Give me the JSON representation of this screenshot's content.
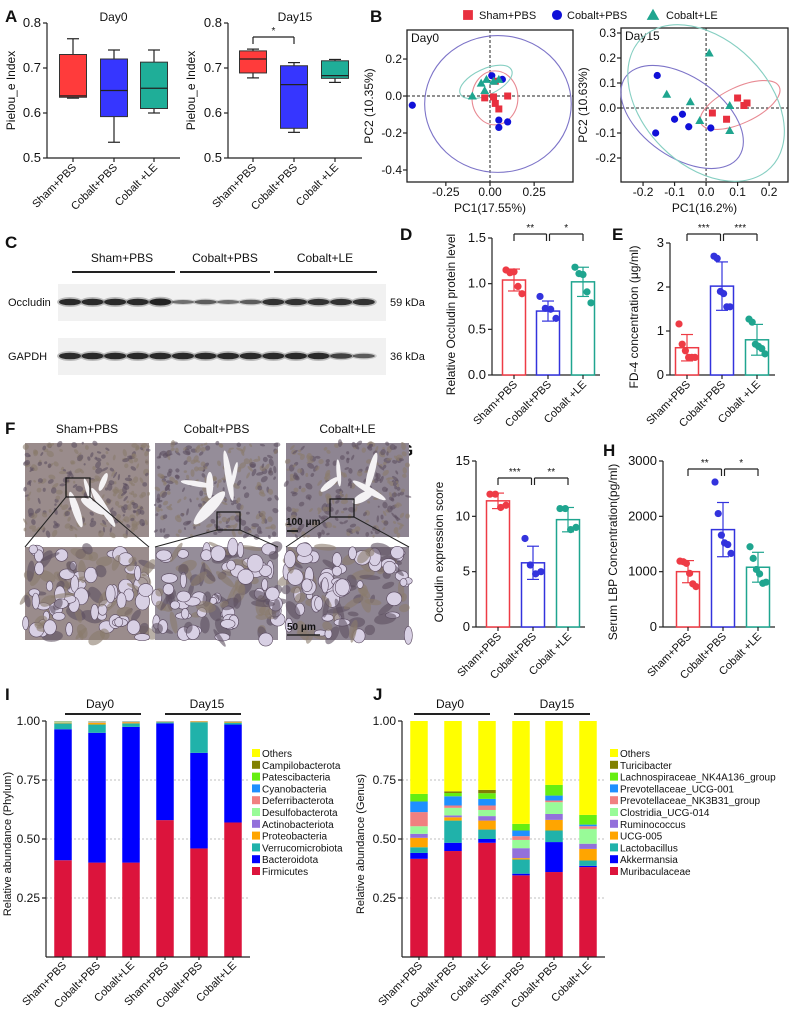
{
  "panel_labels": [
    "A",
    "B",
    "C",
    "D",
    "E",
    "F",
    "G",
    "H",
    "I",
    "J"
  ],
  "group_colors": {
    "Sham+PBS": "#ee3b45",
    "Cobalt+PBS": "#3333dd",
    "Cobalt+LE": "#1fa58f"
  },
  "box_fill_colors": [
    "#ff3b3b",
    "#3636ff",
    "#1fae98"
  ],
  "legend_B": [
    {
      "label": "Sham+PBS",
      "marker": "square",
      "color": "#e8303f"
    },
    {
      "label": "Cobalt+PBS",
      "marker": "circle",
      "color": "#1010d8"
    },
    {
      "label": "Cobalt+LE",
      "marker": "triangle",
      "color": "#1fa58f"
    }
  ],
  "western_blot": {
    "groups": [
      "Sham+PBS",
      "Cobalt+PBS",
      "Cobalt+LE"
    ],
    "proteins": [
      {
        "name": "Occludin",
        "size": "59 kDa"
      },
      {
        "name": "GAPDH",
        "size": "36 kDa"
      }
    ]
  },
  "ihc": {
    "groups": [
      "Sham+PBS",
      "Cobalt+PBS",
      "Cobalt+LE"
    ],
    "scale_bar_low": "100 μm",
    "scale_bar_high": "50 μm"
  },
  "chart_data": [
    {
      "panel": "A",
      "type": "box",
      "title": "Day0",
      "ylabel": "Pielou_e Index",
      "ylim": [
        0.5,
        0.8
      ],
      "yticks": [
        0.5,
        0.6,
        0.7,
        0.8
      ],
      "ytick_labels": [
        "0.5",
        "0.6",
        "0.7",
        "0.8"
      ],
      "categories": [
        "Sham+PBS",
        "Cobalt+PBS",
        "Cobalt +LE"
      ],
      "boxes": [
        {
          "min": 0.633,
          "q1": 0.635,
          "median": 0.638,
          "q3": 0.73,
          "max": 0.765
        },
        {
          "min": 0.535,
          "q1": 0.592,
          "median": 0.65,
          "q3": 0.72,
          "max": 0.74
        },
        {
          "min": 0.6,
          "q1": 0.61,
          "median": 0.655,
          "q3": 0.713,
          "max": 0.74
        }
      ],
      "significance": []
    },
    {
      "panel": "A",
      "type": "box",
      "title": "Day15",
      "ylabel": "Pielou_e Index",
      "ylim": [
        0.5,
        0.8
      ],
      "yticks": [
        0.5,
        0.6,
        0.7,
        0.8
      ],
      "ytick_labels": [
        "0.5",
        "0.6",
        "0.7",
        "0.8"
      ],
      "categories": [
        "Sham+PBS",
        "Cobalt+PBS",
        "Cobalt +LE"
      ],
      "boxes": [
        {
          "min": 0.678,
          "q1": 0.689,
          "median": 0.72,
          "q3": 0.738,
          "max": 0.742
        },
        {
          "min": 0.557,
          "q1": 0.566,
          "median": 0.663,
          "q3": 0.705,
          "max": 0.712
        },
        {
          "min": 0.668,
          "q1": 0.677,
          "median": 0.683,
          "q3": 0.716,
          "max": 0.719
        }
      ],
      "significance": [
        {
          "groups": [
            0,
            1
          ],
          "label": "*"
        }
      ]
    },
    {
      "panel": "B",
      "type": "scatter",
      "title": "Day0",
      "xlabel": "PC1(17.55%)",
      "ylabel": "PC2 (10.35%)",
      "xlim": [
        -0.47,
        0.47
      ],
      "ylim": [
        -0.465,
        0.357
      ],
      "xticks": [
        -0.25,
        0,
        0.25
      ],
      "xtick_labels": [
        "-0.25",
        "0.00",
        "0.25"
      ],
      "yticks": [
        0.2,
        0,
        -0.2,
        -0.4
      ],
      "ytick_labels": [
        "0.2",
        "0.0",
        "-0.2",
        "-0.4"
      ],
      "series": [
        {
          "name": "Sham+PBS",
          "points": [
            [
              -0.03,
              -0.01
            ],
            [
              0.02,
              -0.005
            ],
            [
              0.03,
              -0.04
            ],
            [
              0.05,
              -0.07
            ],
            [
              0.1,
              0.0
            ],
            [
              0.03,
              0.08
            ]
          ],
          "ellipse": {
            "cx": 0.028,
            "cy": -0.01,
            "rx": 0.13,
            "ry": 0.146,
            "angle": 0
          }
        },
        {
          "name": "Cobalt+PBS",
          "points": [
            [
              -0.44,
              -0.05
            ],
            [
              0.01,
              0.11
            ],
            [
              0.07,
              0.09
            ],
            [
              0.05,
              -0.13
            ],
            [
              0.1,
              -0.14
            ],
            [
              0.05,
              -0.17
            ]
          ],
          "ellipse": {
            "cx": 0.045,
            "cy": -0.043,
            "rx": 0.415,
            "ry": 0.37,
            "angle": 0
          }
        },
        {
          "name": "Cobalt+LE",
          "points": [
            [
              -0.1,
              0.0
            ],
            [
              -0.05,
              0.07
            ],
            [
              -0.03,
              0.03
            ],
            [
              -0.02,
              0.09
            ],
            [
              0.02,
              0.08
            ],
            [
              0.05,
              0.09
            ]
          ],
          "ellipse": {
            "cx": -0.023,
            "cy": 0.076,
            "rx": 0.16,
            "ry": 0.07,
            "angle": -25
          }
        }
      ]
    },
    {
      "panel": "B",
      "type": "scatter",
      "title": "Day15",
      "xlabel": "PC1(16.2%)",
      "ylabel": "PC2 (10.63%)",
      "xlim": [
        -0.27,
        0.26
      ],
      "ylim": [
        -0.296,
        0.32
      ],
      "xticks": [
        -0.2,
        -0.1,
        0,
        0.1,
        0.2
      ],
      "xtick_labels": [
        "-0.2",
        "-0.1",
        "0.0",
        "0.1",
        "0.2"
      ],
      "yticks": [
        0.3,
        0.2,
        0.1,
        0,
        -0.1,
        -0.2
      ],
      "ytick_labels": [
        "0.3",
        "0.2",
        "0.1",
        "0.0",
        "-0.1",
        "-0.2"
      ],
      "series": [
        {
          "name": "Sham+PBS",
          "points": [
            [
              0.02,
              -0.02
            ],
            [
              0.065,
              -0.045
            ],
            [
              0.1,
              0.04
            ],
            [
              0.12,
              0.01
            ],
            [
              0.13,
              0.02
            ]
          ],
          "ellipse": {
            "cx": 0.108,
            "cy": 0.012,
            "rx": 0.137,
            "ry": 0.072,
            "angle": -25
          }
        },
        {
          "name": "Cobalt+PBS",
          "points": [
            [
              -0.155,
              0.13
            ],
            [
              -0.1,
              -0.045
            ],
            [
              -0.075,
              -0.025
            ],
            [
              -0.055,
              -0.075
            ],
            [
              0.015,
              -0.08
            ],
            [
              -0.16,
              -0.1
            ]
          ],
          "ellipse": {
            "cx": -0.076,
            "cy": -0.036,
            "rx": 0.22,
            "ry": 0.16,
            "angle": 35
          }
        },
        {
          "name": "Cobalt+LE",
          "points": [
            [
              0.01,
              0.22
            ],
            [
              -0.125,
              0.055
            ],
            [
              -0.05,
              0.025
            ],
            [
              -0.02,
              -0.05
            ],
            [
              0.075,
              0.01
            ],
            [
              0.075,
              -0.09
            ]
          ],
          "ellipse": {
            "cx": 0.0,
            "cy": 0.02,
            "rx": 0.29,
            "ry": 0.25,
            "angle": 45
          }
        }
      ]
    },
    {
      "panel": "D",
      "type": "bar",
      "ylabel": "Relative Occludin protein level",
      "ylim": [
        0,
        1.5
      ],
      "yticks": [
        0,
        0.5,
        1.0,
        1.5
      ],
      "ytick_labels": [
        "0.0",
        "0.5",
        "1.0",
        "1.5"
      ],
      "categories": [
        "Sham+PBS",
        "Cobalt+PBS",
        "Cobalt +LE"
      ],
      "means": [
        1.04,
        0.7,
        1.02
      ],
      "sd": [
        0.12,
        0.11,
        0.16
      ],
      "points": [
        [
          1.15,
          1.12,
          1.13,
          0.97,
          0.89
        ],
        [
          0.86,
          0.73,
          0.72,
          0.62
        ],
        [
          1.18,
          1.11,
          1.1,
          0.91,
          0.79
        ]
      ],
      "significance": [
        {
          "groups": [
            0,
            1
          ],
          "label": "**"
        },
        {
          "groups": [
            1,
            2
          ],
          "label": "*"
        }
      ]
    },
    {
      "panel": "E",
      "type": "bar",
      "ylabel": "FD-4 concentration (μg/ml)",
      "ylim": [
        0,
        3
      ],
      "yticks": [
        0,
        1,
        2,
        3
      ],
      "ytick_labels": [
        "0",
        "1",
        "2",
        "3"
      ],
      "categories": [
        "Sham+PBS",
        "Cobalt+PBS",
        "Cobalt +LE"
      ],
      "means": [
        0.62,
        2.02,
        0.8
      ],
      "sd": [
        0.3,
        0.55,
        0.35
      ],
      "points": [
        [
          1.16,
          0.7,
          0.55,
          0.4,
          0.4,
          0.4
        ],
        [
          2.7,
          2.65,
          1.9,
          1.85,
          1.55,
          1.55
        ],
        [
          1.27,
          1.2,
          0.7,
          0.65,
          0.6,
          0.48
        ]
      ],
      "significance": [
        {
          "groups": [
            0,
            1
          ],
          "label": "***"
        },
        {
          "groups": [
            1,
            2
          ],
          "label": "***"
        }
      ]
    },
    {
      "panel": "G",
      "type": "bar",
      "ylabel": "Occludin expression score",
      "ylim": [
        0,
        15
      ],
      "yticks": [
        0,
        5,
        10,
        15
      ],
      "ytick_labels": [
        "0",
        "5",
        "10",
        "15"
      ],
      "categories": [
        "Sham+PBS",
        "Cobalt+PBS",
        "Cobalt +LE"
      ],
      "means": [
        11.4,
        5.8,
        9.7
      ],
      "sd": [
        0.7,
        1.5,
        1.1
      ],
      "points": [
        [
          12.0,
          12.0,
          10.8,
          11.0
        ],
        [
          8.0,
          5.6,
          4.8,
          5.0
        ],
        [
          10.7,
          10.7,
          8.8,
          9.0
        ]
      ],
      "significance": [
        {
          "groups": [
            0,
            1
          ],
          "label": "***"
        },
        {
          "groups": [
            1,
            2
          ],
          "label": "**"
        }
      ]
    },
    {
      "panel": "H",
      "type": "bar",
      "ylabel": "Serum LBP Concentration(pg/ml)",
      "ylim": [
        0,
        3000
      ],
      "yticks": [
        0,
        1000,
        2000,
        3000
      ],
      "ytick_labels": [
        "0",
        "1000",
        "2000",
        "3000"
      ],
      "categories": [
        "Sham+PBS",
        "Cobalt+PBS",
        "Cobalt +LE"
      ],
      "means": [
        1000,
        1760,
        1080
      ],
      "sd": [
        200,
        490,
        270
      ],
      "points": [
        [
          1190,
          1180,
          1150,
          970,
          780,
          730
        ],
        [
          2620,
          2050,
          1660,
          1520,
          1490,
          1330
        ],
        [
          1450,
          1240,
          1040,
          960,
          790,
          810
        ]
      ],
      "significance": [
        {
          "groups": [
            0,
            1
          ],
          "label": "**"
        },
        {
          "groups": [
            1,
            2
          ],
          "label": "*"
        }
      ]
    },
    {
      "panel": "I",
      "type": "bar",
      "stacked": true,
      "ylabel": "Relative abundance (Phylum)",
      "ylim": [
        0,
        1
      ],
      "yticks": [
        0.25,
        0.5,
        0.75,
        1.0
      ],
      "ytick_labels": [
        "0.25",
        "0.50",
        "0.75",
        "1.00"
      ],
      "grid": true,
      "group_headers": [
        "Day0",
        "Day15"
      ],
      "categories": [
        "Sham+PBS",
        "Cobalt+PBS",
        "Cobalt+LE",
        "Sham+PBS",
        "Cobalt+PBS",
        "Cobalt+LE"
      ],
      "legend_position": "right",
      "series": [
        {
          "name": "Others",
          "color": "#ffff00",
          "values": [
            0.0005,
            0.0002,
            0.0001,
            0,
            0,
            0
          ]
        },
        {
          "name": "Campilobacterota",
          "color": "#808000",
          "values": [
            0.0005,
            0.0003,
            0.0001,
            0.0001,
            0,
            0.0001
          ]
        },
        {
          "name": "Patescibacteria",
          "color": "#66ee11",
          "values": [
            0.001,
            0.0005,
            0.0003,
            0.0001,
            0.0001,
            0.0001
          ]
        },
        {
          "name": "Cyanobacteria",
          "color": "#1e90ff",
          "values": [
            0.001,
            0.001,
            0.0005,
            0.0003,
            0.0001,
            0.0003
          ]
        },
        {
          "name": "Deferribacterota",
          "color": "#f08080",
          "values": [
            0.001,
            0.001,
            0.001,
            0.0005,
            0.0003,
            0.0005
          ]
        },
        {
          "name": "Desulfobacterota",
          "color": "#98fb98",
          "values": [
            0.002,
            0.002,
            0.001,
            0.001,
            0.0005,
            0.001
          ]
        },
        {
          "name": "Actinobacteriota",
          "color": "#9370db",
          "values": [
            0.001,
            0.002,
            0.002,
            0.001,
            0.001,
            0.001
          ]
        },
        {
          "name": "Proteobacteria",
          "color": "#ffa500",
          "values": [
            0.003,
            0.008,
            0.005,
            0.002,
            0.003,
            0.004
          ]
        },
        {
          "name": "Verrucomicrobiota",
          "color": "#20b2aa",
          "values": [
            0.025,
            0.035,
            0.015,
            0.005,
            0.13,
            0.008
          ]
        },
        {
          "name": "Bacteroidota",
          "color": "#0000ff",
          "values": [
            0.555,
            0.55,
            0.575,
            0.41,
            0.405,
            0.415
          ]
        },
        {
          "name": "Firmicutes",
          "color": "#dc143c",
          "values": [
            0.41,
            0.4,
            0.4,
            0.58,
            0.46,
            0.57
          ]
        }
      ]
    },
    {
      "panel": "J",
      "type": "bar",
      "stacked": true,
      "ylabel": "Relative abundance (Genus)",
      "ylim": [
        0,
        1
      ],
      "yticks": [
        0.25,
        0.5,
        0.75,
        1.0
      ],
      "ytick_labels": [
        "0.25",
        "0.50",
        "0.75",
        "1.00"
      ],
      "grid": true,
      "group_headers": [
        "Day0",
        "Day15"
      ],
      "categories": [
        "Sham+PBS",
        "Cobalt+PBS",
        "Cobalt+LE",
        "Sham+PBS",
        "Cobalt+PBS",
        "Cobalt+LE"
      ],
      "legend_position": "right",
      "series": [
        {
          "name": "Others",
          "color": "#ffff00",
          "values": [
            0.309,
            0.298,
            0.292,
            0.436,
            0.271,
            0.398
          ]
        },
        {
          "name": "Turicibacter",
          "color": "#808000",
          "values": [
            0,
            0.007,
            0.014,
            0,
            0,
            0
          ]
        },
        {
          "name": "Lachnospiraceae_NK4A136_group",
          "color": "#66ee11",
          "values": [
            0.032,
            0.014,
            0.024,
            0.028,
            0.045,
            0.041
          ]
        },
        {
          "name": "Prevotellaceae_UCG-001",
          "color": "#1e90ff",
          "values": [
            0.045,
            0.039,
            0.028,
            0.024,
            0.021,
            0.007
          ]
        },
        {
          "name": "Prevotellaceae_NK3B31_group",
          "color": "#f08080",
          "values": [
            0.06,
            0.01,
            0.019,
            0.016,
            0.007,
            0.011
          ]
        },
        {
          "name": "Clostridia_UCG-014",
          "color": "#98fb98",
          "values": [
            0.032,
            0.032,
            0.026,
            0.035,
            0.05,
            0.063
          ]
        },
        {
          "name": "Ruminococcus",
          "color": "#9370db",
          "values": [
            0.017,
            0.008,
            0.019,
            0.042,
            0.025,
            0.022
          ]
        },
        {
          "name": "UCG-005",
          "color": "#ffa500",
          "values": [
            0.04,
            0.014,
            0.038,
            0.006,
            0.045,
            0.049
          ]
        },
        {
          "name": "Lactobacillus",
          "color": "#20b2aa",
          "values": [
            0.024,
            0.094,
            0.04,
            0.06,
            0.049,
            0.023
          ]
        },
        {
          "name": "Akkermansia",
          "color": "#0000ff",
          "values": [
            0.025,
            0.035,
            0.016,
            0.007,
            0.127,
            0.005
          ]
        },
        {
          "name": "Muribaculaceae",
          "color": "#dc143c",
          "values": [
            0.416,
            0.449,
            0.484,
            0.346,
            0.36,
            0.381
          ]
        }
      ]
    }
  ]
}
